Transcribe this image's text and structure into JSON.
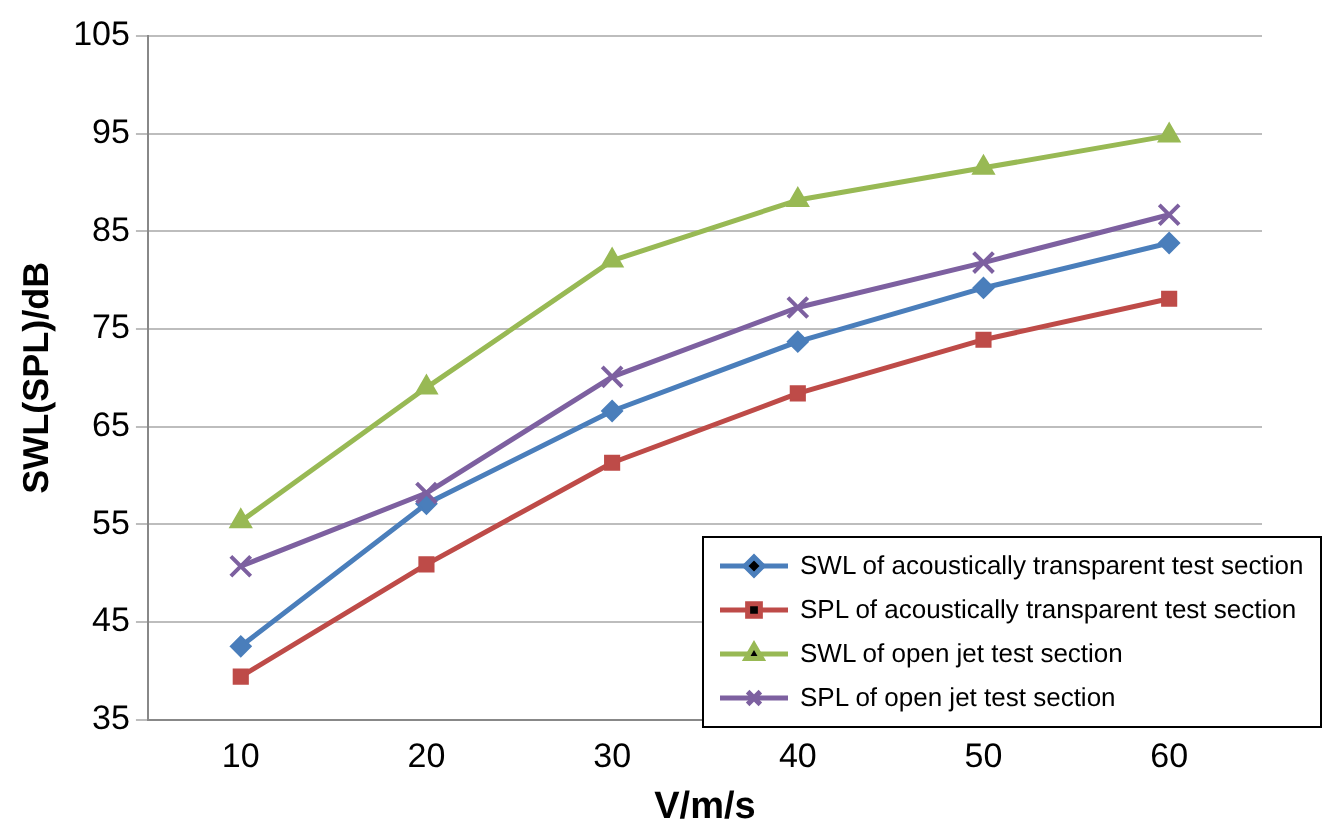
{
  "chart_data": {
    "type": "line",
    "xlabel": "V/m/s",
    "ylabel": "SWL(SPL)/dB",
    "categories": [
      "10",
      "20",
      "30",
      "40",
      "50",
      "60"
    ],
    "ylim": [
      35,
      105
    ],
    "yticks": [
      35,
      45,
      55,
      65,
      75,
      85,
      95,
      105
    ],
    "grid": "y",
    "legend": "bottom right",
    "line_style": "solid",
    "series": [
      {
        "name": "SWL of acoustically transparent test section",
        "color": "#4a7ebb",
        "marker": "diamond",
        "values": [
          42.5,
          57.1,
          66.6,
          73.7,
          79.2,
          83.8
        ]
      },
      {
        "name": "SPL of acoustically transparent test section",
        "color": "#be4b48",
        "marker": "square",
        "values": [
          39.4,
          50.9,
          61.3,
          68.4,
          73.9,
          78.1
        ]
      },
      {
        "name": "SWL of open jet test section",
        "color": "#98b954",
        "marker": "triangle",
        "values": [
          55.3,
          69.0,
          82.0,
          88.2,
          91.5,
          94.8
        ]
      },
      {
        "name": "SPL of open jet test section",
        "color": "#7d60a0",
        "marker": "cross",
        "values": [
          50.7,
          58.2,
          70.1,
          77.2,
          81.8,
          86.7
        ]
      }
    ]
  }
}
